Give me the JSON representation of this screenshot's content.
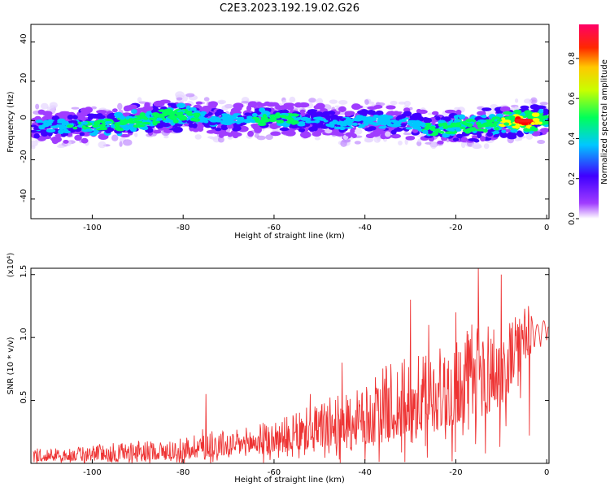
{
  "title": "C2E3.2023.192.19.02.G26",
  "chart_data": [
    {
      "type": "heatmap",
      "xlabel": "Height of straight line (km)",
      "ylabel": "Frequency (Hz)",
      "xlim": [
        -113.5,
        0.5
      ],
      "ylim": [
        -50,
        49
      ],
      "xticks": [
        "-100",
        "-80",
        "-60",
        "-40",
        "-20",
        "0"
      ],
      "yticks": [
        "40",
        "20",
        "0",
        "-20",
        "-40"
      ],
      "colorbar": {
        "label": "Normalized spectral amplitude",
        "range": [
          0,
          0.97
        ],
        "ticks": [
          "0.0",
          "0.2",
          "0.4",
          "0.6",
          "0.8"
        ]
      },
      "colors": [
        "#ffffff",
        "#a03cff",
        "#3f00ff",
        "#00c8ff",
        "#00ff5a",
        "#ffff00",
        "#ff0000",
        "#ff0066"
      ],
      "band": {
        "x": [
          -113,
          -105,
          -100,
          -95,
          -90,
          -85,
          -80,
          -75,
          -70,
          -65,
          -60,
          -55,
          -50,
          -45,
          -40,
          -35,
          -30,
          -25,
          -20,
          -15,
          -10,
          -5,
          0
        ],
        "center_hz": [
          -3,
          -3,
          -2,
          -2,
          0,
          2,
          3,
          1,
          0,
          1,
          1,
          0,
          0,
          -1,
          0,
          -1,
          -1,
          -4,
          -3,
          -3,
          -1,
          0,
          0
        ],
        "peak_amplitude": [
          0.3,
          0.45,
          0.5,
          0.45,
          0.55,
          0.5,
          0.55,
          0.4,
          0.4,
          0.45,
          0.45,
          0.45,
          0.4,
          0.35,
          0.4,
          0.4,
          0.35,
          0.5,
          0.55,
          0.5,
          0.6,
          0.9,
          0.5
        ]
      }
    },
    {
      "type": "line",
      "xlabel": "Height of straight line (km)",
      "ylabel": "SNR (10 * v/v)",
      "multiplier": "(x10⁴)",
      "xlim": [
        -113.5,
        0.5
      ],
      "ylim": [
        0,
        1.55
      ],
      "xticks": [
        "-100",
        "-80",
        "-60",
        "-40",
        "-20",
        "0"
      ],
      "yticks": [
        "1.5",
        "1.0",
        "0.5"
      ],
      "series_color": "#ee3333",
      "envelope": {
        "x": [
          -113,
          -105,
          -100,
          -95,
          -90,
          -85,
          -80,
          -75,
          -70,
          -65,
          -60,
          -55,
          -50,
          -45,
          -40,
          -35,
          -30,
          -25,
          -20,
          -15,
          -10,
          -5,
          -2,
          0
        ],
        "low": [
          0.02,
          0.02,
          0.02,
          0.03,
          0.03,
          0.03,
          0.04,
          0.05,
          0.06,
          0.07,
          0.08,
          0.1,
          0.12,
          0.14,
          0.15,
          0.17,
          0.2,
          0.25,
          0.3,
          0.35,
          0.45,
          0.8,
          0.8,
          0.9
        ],
        "high": [
          0.12,
          0.12,
          0.15,
          0.17,
          0.18,
          0.18,
          0.2,
          0.3,
          0.25,
          0.3,
          0.35,
          0.4,
          0.5,
          0.55,
          0.6,
          0.8,
          0.85,
          0.9,
          1.0,
          1.2,
          1.1,
          1.25,
          1.1,
          1.15
        ]
      },
      "spikes": [
        [
          -75,
          0.55
        ],
        [
          -30,
          1.3
        ],
        [
          -15,
          1.55
        ],
        [
          -10,
          1.5
        ],
        [
          -20,
          1.2
        ],
        [
          -26,
          1.1
        ],
        [
          -45,
          0.8
        ],
        [
          -52,
          0.55
        ],
        [
          -4,
          1.25
        ]
      ]
    }
  ]
}
